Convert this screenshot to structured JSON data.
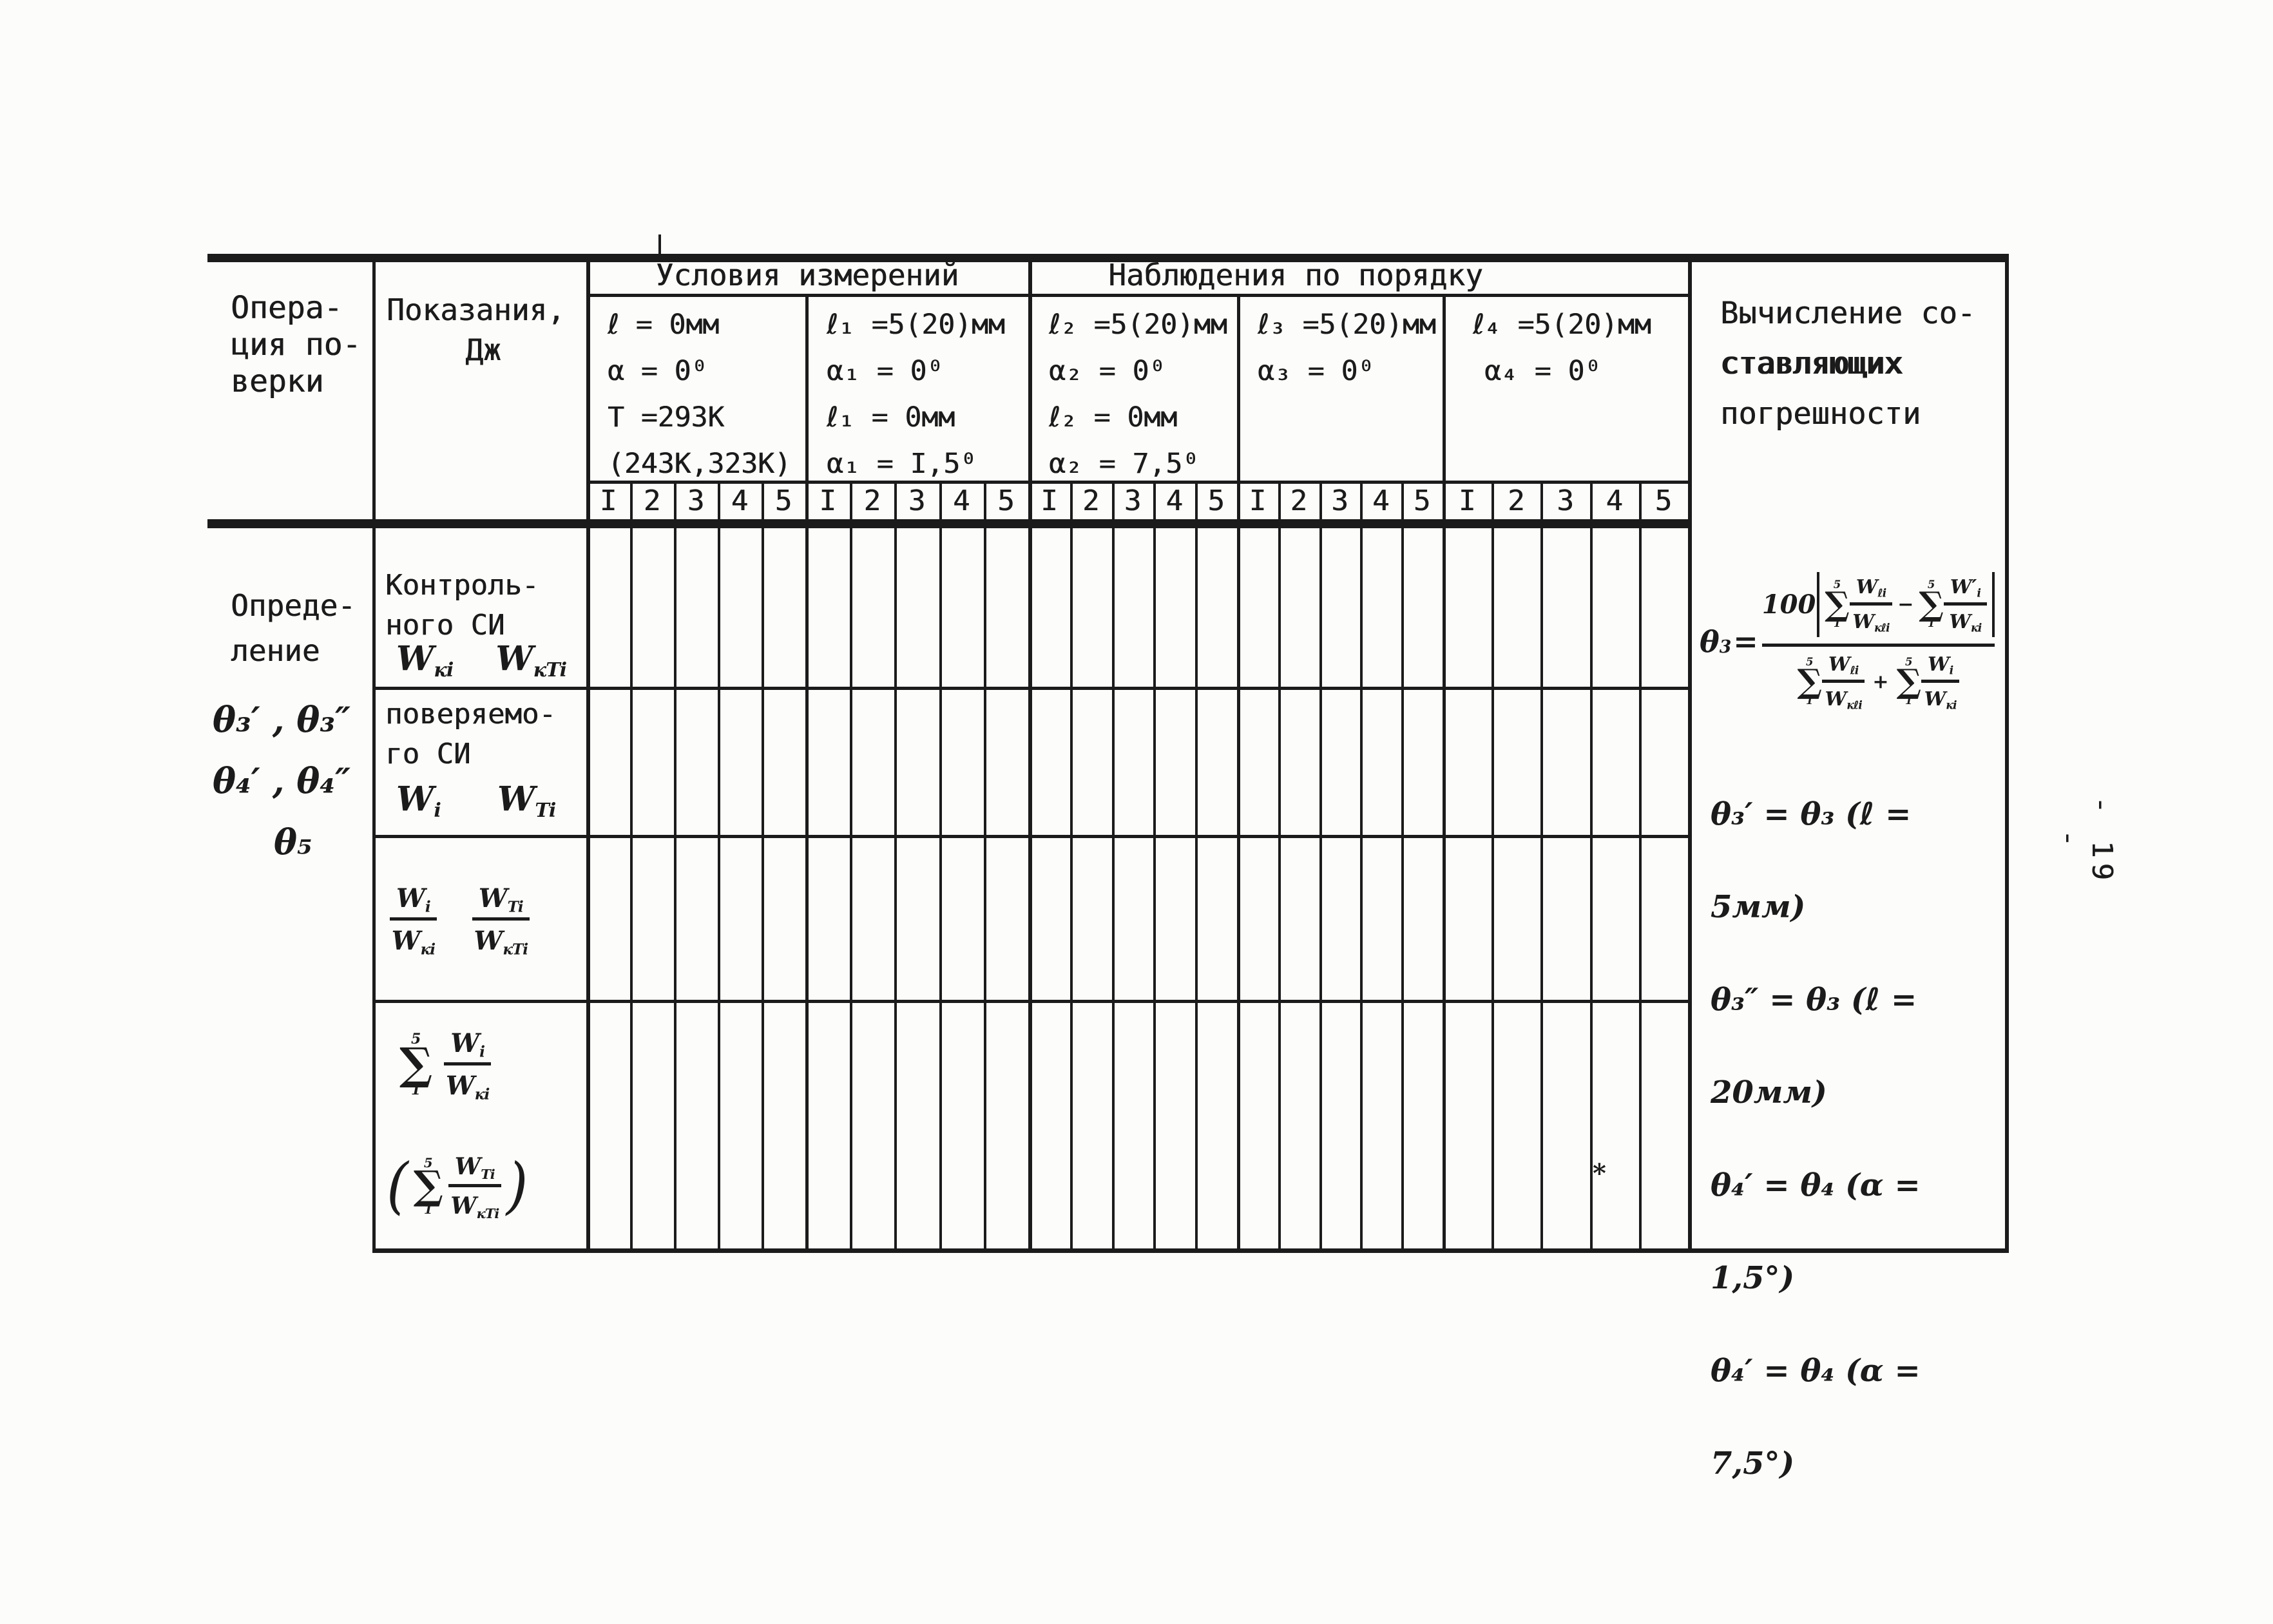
{
  "page_number": "- 19 -",
  "artifact_mark": "*",
  "header": {
    "operation_col": [
      "Опера-",
      "ция по-",
      "верки"
    ],
    "readings_col": [
      "Показания,",
      "Дж"
    ],
    "conditions_group": "Условия измерений",
    "observations_group": "Наблюдения по порядку",
    "calc_col": [
      "Вычисление со-",
      "ставляющих",
      "погрешности"
    ],
    "condition_cells": [
      [
        "ℓ = 0мм",
        "α = 0⁰",
        "Т =293К",
        "(243К,323К)"
      ],
      [
        "ℓ₁ =5(20)мм",
        "α₁ = 0⁰",
        "ℓ₁ = 0мм",
        "α₁ = I,5⁰"
      ],
      [
        "ℓ₂ =5(20)мм",
        "α₂ = 0⁰",
        "ℓ₂ = 0мм",
        "α₂ = 7,5⁰"
      ],
      [
        "ℓ₃ =5(20)мм",
        "α₃ = 0⁰"
      ],
      [
        "ℓ₄ =5(20)мм",
        "α₄ = 0⁰"
      ]
    ],
    "trial_numbers": [
      "I",
      "2",
      "3",
      "4",
      "5"
    ]
  },
  "body": {
    "operation_cell": {
      "typed": [
        "Опреде-",
        "ление"
      ],
      "hand": [
        "θ₃′ , θ₃″",
        "θ₄′ , θ₄″",
        "θ₅"
      ]
    },
    "row1": {
      "label": [
        "Контроль-",
        "ного СИ"
      ],
      "sym1": {
        "base": "W",
        "sub": "кi"
      },
      "sym2": {
        "base": "W",
        "sub": "кТi"
      }
    },
    "row2": {
      "label": [
        "поверяемо-",
        "го СИ"
      ],
      "sym1": {
        "base": "W",
        "sub": "i"
      },
      "sym2": {
        "base": "W",
        "sub": "Тi"
      }
    },
    "row3": {
      "frac1": {
        "num_base": "W",
        "num_sub": "i",
        "den_base": "W",
        "den_sub": "кi"
      },
      "frac2": {
        "num_base": "W",
        "num_sub": "Тi",
        "den_base": "W",
        "den_sub": "кТi"
      }
    },
    "row4": {
      "sigma": "∑",
      "sum_upper": "5",
      "sum_lower": "1",
      "frac1": {
        "num_base": "W",
        "num_sub": "i",
        "den_base": "W",
        "den_sub": "кi"
      },
      "paren_open": "(",
      "frac2": {
        "num_base": "W",
        "num_sub": "Тi",
        "den_base": "W",
        "den_sub": "кТi"
      },
      "paren_close": ")"
    }
  },
  "calc": {
    "theta_base": "θ",
    "theta_sub": "3",
    "equals": "=",
    "coef": "100",
    "sigma": "∑",
    "sum_upper": "5",
    "sum_lower": "1",
    "minus": "−",
    "plus": "+",
    "num_frac1": {
      "num_base": "W",
      "num_sub": "ℓi",
      "den_base": "W",
      "den_sub": "кℓi"
    },
    "num_frac2": {
      "num_base": "W′",
      "num_sub": "i",
      "den_base": "W",
      "den_sub": "кi"
    },
    "den_frac1": {
      "num_base": "W",
      "num_sub": "ℓi",
      "den_base": "W",
      "den_sub": "кℓi"
    },
    "den_frac2": {
      "num_base": "W",
      "num_sub": "i",
      "den_base": "W",
      "den_sub": "кi"
    },
    "result_lines": [
      "θ₃′ = θ₃ (ℓ = 5мм)",
      "θ₃″ = θ₃ (ℓ = 20мм)",
      "θ₄′ = θ₄ (α = 1,5°)",
      "θ₄′ = θ₄ (α = 7,5°)"
    ]
  }
}
